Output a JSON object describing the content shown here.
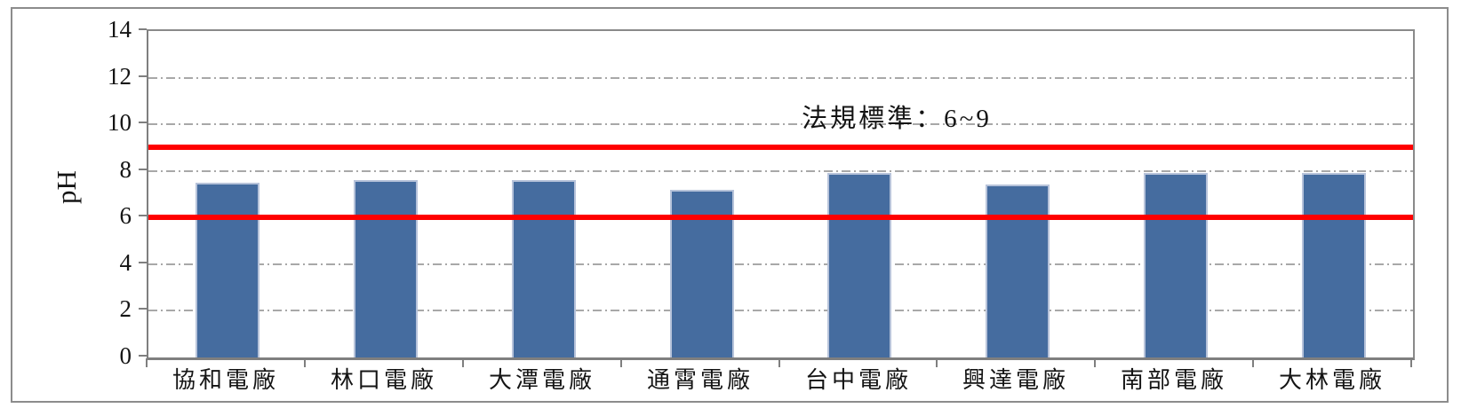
{
  "chart_data": {
    "type": "bar",
    "title": "",
    "categories": [
      "協和電廠",
      "林口電廠",
      "大潭電廠",
      "通霄電廠",
      "台中電廠",
      "興達電廠",
      "南部電廠",
      "大林電廠"
    ],
    "values": [
      7.5,
      7.6,
      7.6,
      7.2,
      7.9,
      7.4,
      7.9,
      7.9
    ],
    "xlabel": "",
    "ylabel": "pH",
    "ylim": [
      0,
      14
    ],
    "yticks": [
      0,
      2,
      4,
      6,
      8,
      10,
      12,
      14
    ],
    "grid": "horizontal dash-dot at major ticks",
    "legend": "none",
    "annotation": {
      "text": "法規標準：6~9"
    },
    "reference_lines": [
      {
        "name": "upper-limit",
        "value": 9,
        "color": "#FF0000"
      },
      {
        "name": "lower-limit",
        "value": 6,
        "color": "#FF0000"
      }
    ],
    "colors": {
      "bar_fill": "#456C9F",
      "bar_edge": "#B7C3DA",
      "reference_line": "#FF0000",
      "gridline": "#A8A8A8",
      "axis": "#7F7F7F",
      "plot_border": "#8A8A8A",
      "figure_frame": "#8C8C8C",
      "text": "#141414"
    }
  }
}
